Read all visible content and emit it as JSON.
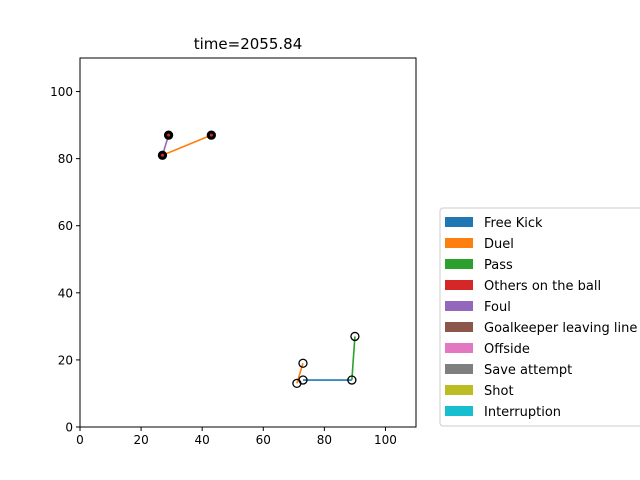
{
  "chart_data": {
    "type": "scatter",
    "title": "time=2055.84",
    "xlabel": "",
    "ylabel": "",
    "xlim": [
      0,
      110
    ],
    "ylim": [
      0,
      110
    ],
    "xticks": [
      0,
      20,
      40,
      60,
      80,
      100
    ],
    "yticks": [
      0,
      20,
      40,
      60,
      80,
      100
    ],
    "grid": false,
    "legend_position": "right",
    "legend": [
      {
        "label": "Free Kick",
        "color": "#1f77b4"
      },
      {
        "label": "Duel",
        "color": "#ff7f0e"
      },
      {
        "label": "Pass",
        "color": "#2ca02c"
      },
      {
        "label": "Others on the ball",
        "color": "#d62728"
      },
      {
        "label": "Foul",
        "color": "#9467bd"
      },
      {
        "label": "Goalkeeper leaving line",
        "color": "#8c564b"
      },
      {
        "label": "Offside",
        "color": "#e377c2"
      },
      {
        "label": "Save attempt",
        "color": "#7f7f7f"
      },
      {
        "label": "Shot",
        "color": "#bcbd22"
      },
      {
        "label": "Interruption",
        "color": "#17becf"
      }
    ],
    "segments": [
      {
        "event": "Duel",
        "color": "#ff7f0e",
        "from": [
          43,
          87
        ],
        "to": [
          27,
          81
        ]
      },
      {
        "event": "Foul",
        "color": "#9467bd",
        "from": [
          27,
          81
        ],
        "to": [
          29,
          87
        ]
      },
      {
        "event": "Duel",
        "color": "#ff7f0e",
        "from": [
          71,
          13
        ],
        "to": [
          73,
          19
        ]
      },
      {
        "event": "Free Kick",
        "color": "#1f77b4",
        "from": [
          73,
          14
        ],
        "to": [
          89,
          14
        ]
      },
      {
        "event": "Pass",
        "color": "#2ca02c",
        "from": [
          89,
          14
        ],
        "to": [
          90,
          27
        ]
      }
    ],
    "points": [
      {
        "x": 43,
        "y": 87,
        "filled": true
      },
      {
        "x": 29,
        "y": 87,
        "filled": true
      },
      {
        "x": 27,
        "y": 81,
        "filled": true
      },
      {
        "x": 71,
        "y": 13,
        "filled": false
      },
      {
        "x": 73,
        "y": 19,
        "filled": false
      },
      {
        "x": 73,
        "y": 14,
        "filled": false
      },
      {
        "x": 89,
        "y": 14,
        "filled": false
      },
      {
        "x": 90,
        "y": 27,
        "filled": false
      }
    ]
  }
}
